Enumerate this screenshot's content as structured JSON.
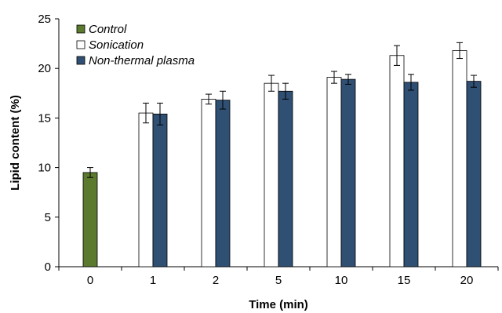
{
  "chart_data": {
    "type": "bar",
    "xlabel": "Time (min)",
    "ylabel": "Lipid content  (%)",
    "ylim": [
      0,
      25
    ],
    "yticks": [
      0,
      5,
      10,
      15,
      20,
      25
    ],
    "categories": [
      "0",
      "1",
      "2",
      "5",
      "10",
      "15",
      "20"
    ],
    "legend_position": "top-left",
    "series": [
      {
        "name": "Control",
        "color": "#5b7a2e",
        "values": [
          9.5,
          null,
          null,
          null,
          null,
          null,
          null
        ],
        "errors": [
          0.5,
          null,
          null,
          null,
          null,
          null,
          null
        ]
      },
      {
        "name": "Sonication",
        "color": "#ffffff",
        "values": [
          null,
          15.5,
          16.9,
          18.5,
          19.1,
          21.3,
          21.8
        ],
        "errors": [
          null,
          1.0,
          0.5,
          0.8,
          0.6,
          1.0,
          0.8
        ]
      },
      {
        "name": "Non-thermal plasma",
        "color": "#2f4f73",
        "values": [
          null,
          15.4,
          16.8,
          17.7,
          18.9,
          18.6,
          18.7
        ],
        "errors": [
          null,
          1.1,
          0.9,
          0.8,
          0.5,
          0.8,
          0.6
        ]
      }
    ]
  }
}
